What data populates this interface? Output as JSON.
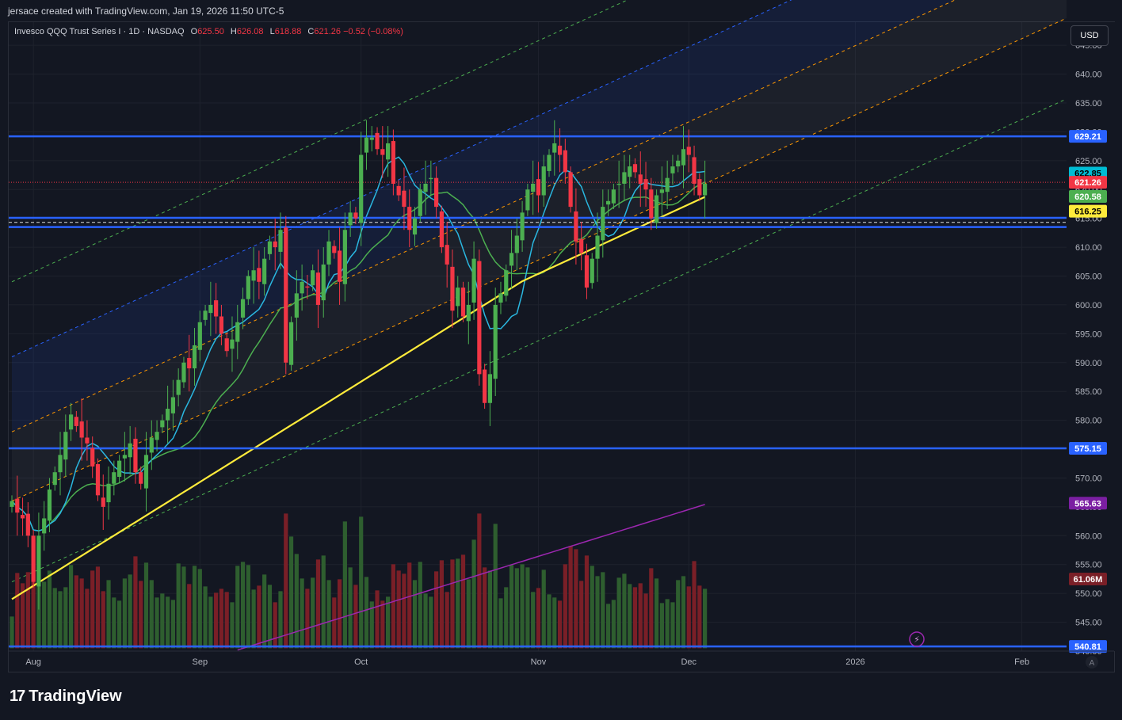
{
  "header": {
    "attribution": "jersace created with TradingView.com, Jan 19, 2026 11:50 UTC-5"
  },
  "legend": {
    "symbol": "Invesco QQQ Trust Series I · 1D · NASDAQ",
    "o_label": "O",
    "o_value": "625.50",
    "h_label": "H",
    "h_value": "626.08",
    "l_label": "L",
    "l_value": "618.88",
    "c_label": "C",
    "c_value": "621.26",
    "change": "−0.52 (−0.08%)"
  },
  "currency_button": "USD",
  "brand": {
    "logo_glyph": "17",
    "name": "TradingView"
  },
  "colors": {
    "background": "#131722",
    "up": "#4caf50",
    "down": "#f23645",
    "vol_up": "#2e5e2f",
    "vol_down": "#7a1f27",
    "level_line": "#2962ff",
    "ema_short": "#2ab7e0",
    "ema_mid": "#4caf50",
    "sma_long": "#ffeb3b",
    "vol_ma": "#9c27b0"
  },
  "chart_data": {
    "type": "candlestick",
    "title": "Invesco QQQ Trust Series I",
    "interval": "1D",
    "exchange": "NASDAQ",
    "ylim": [
      540,
      649
    ],
    "y_ticks": [
      "645.00",
      "640.00",
      "635.00",
      "630.00",
      "625.00",
      "620.00",
      "615.00",
      "610.00",
      "605.00",
      "600.00",
      "595.00",
      "590.00",
      "585.00",
      "580.00",
      "575.00",
      "570.00",
      "565.00",
      "560.00",
      "555.00",
      "550.00",
      "545.00",
      "540.00"
    ],
    "x_ticks": [
      {
        "label": "Aug",
        "day": 4
      },
      {
        "label": "Sep",
        "day": 35
      },
      {
        "label": "Oct",
        "day": 65
      },
      {
        "label": "Nov",
        "day": 98
      },
      {
        "label": "Dec",
        "day": 126
      },
      {
        "label": "2026",
        "day": 157
      },
      {
        "label": "Feb",
        "day": 188
      }
    ],
    "closes": [
      566,
      564,
      563,
      560,
      552,
      560,
      563,
      568,
      571,
      574,
      578,
      581,
      579,
      577,
      576,
      572,
      567,
      565,
      569,
      571,
      573,
      574,
      576,
      571,
      569,
      574,
      577,
      578,
      580,
      582,
      584,
      587,
      590,
      589,
      593,
      597,
      599,
      600,
      598,
      595,
      592,
      594,
      597,
      601,
      605,
      606,
      604,
      608,
      611,
      610,
      613,
      590,
      597,
      602,
      604,
      603,
      606,
      600,
      607,
      611,
      609,
      604,
      613,
      616,
      615,
      626,
      629,
      629,
      627,
      626,
      628,
      621,
      619,
      617,
      613,
      615,
      620,
      621,
      622,
      617,
      610,
      607,
      599,
      603,
      598,
      600,
      608,
      588,
      583,
      588,
      600,
      602,
      606,
      609,
      612,
      616,
      620,
      621,
      619,
      624,
      626,
      628,
      626,
      623,
      617,
      611,
      609,
      603,
      608,
      612,
      617,
      618,
      620,
      621,
      623,
      624,
      623,
      621,
      620,
      615,
      619,
      620,
      622,
      624,
      625,
      627,
      626,
      621,
      619,
      621
    ],
    "levels": [
      629.21,
      575.15,
      540.81
    ],
    "zone": [
      613.5,
      615.1
    ],
    "price_tags": [
      {
        "value": "629.21",
        "y": 629.21,
        "bg": "#2962ff",
        "fg": "#ffffff"
      },
      {
        "value": "622.85",
        "y": 622.85,
        "bg": "#00bcd4",
        "fg": "#000000"
      },
      {
        "value": "621.26",
        "y": 621.26,
        "bg": "#f23645",
        "fg": "#ffffff"
      },
      {
        "value": "620.58",
        "y": 618.8,
        "bg": "#4caf50",
        "fg": "#ffffff"
      },
      {
        "value": "616.25",
        "y": 616.25,
        "bg": "#ffeb3b",
        "fg": "#000000"
      },
      {
        "value": "575.15",
        "y": 575.15,
        "bg": "#2962ff",
        "fg": "#ffffff"
      },
      {
        "value": "565.63",
        "y": 565.63,
        "bg": "#7b1fa2",
        "fg": "#ffffff"
      },
      {
        "value": "61.06M",
        "y": 552.5,
        "bg": "#7a1f27",
        "fg": "#ffffff"
      },
      {
        "value": "540.81",
        "y": 540.81,
        "bg": "#2962ff",
        "fg": "#ffffff"
      }
    ]
  }
}
